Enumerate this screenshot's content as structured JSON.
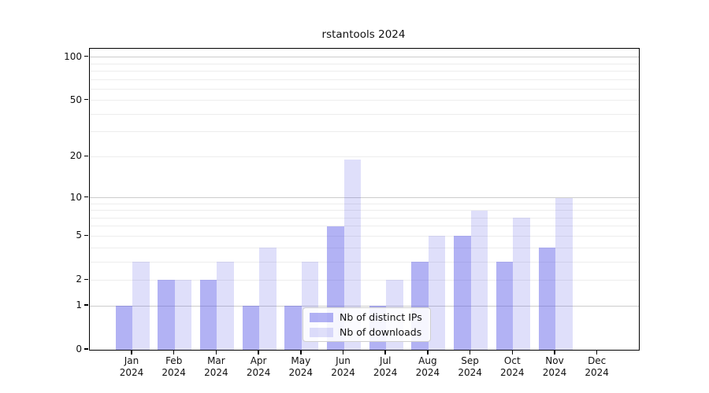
{
  "chart_data": {
    "type": "bar",
    "title": "rstantools 2024",
    "x_tick_months": [
      "Jan",
      "Feb",
      "Mar",
      "Apr",
      "May",
      "Jun",
      "Jul",
      "Aug",
      "Sep",
      "Oct",
      "Nov",
      "Dec"
    ],
    "x_tick_year": "2024",
    "series": [
      {
        "name": "Nb of distinct IPs",
        "color": "rgba(85,85,230,0.45)",
        "color_on_white": "#b2b2f1",
        "values": [
          1,
          2,
          2,
          1,
          1,
          6,
          1,
          3,
          5,
          3,
          4,
          0
        ]
      },
      {
        "name": "Nb of downloads",
        "color": "rgba(85,85,230,0.19)",
        "color_on_white": "#dfdff5",
        "values": [
          3,
          2,
          3,
          4,
          3,
          19,
          2,
          5,
          8,
          7,
          10,
          0
        ]
      }
    ],
    "y_axis": {
      "scale": "log1p",
      "tick_labels": [
        100,
        50,
        20,
        10,
        5,
        2,
        1,
        0
      ],
      "major_gridlines": [
        1,
        10,
        100
      ],
      "minor_gridlines": [
        2,
        3,
        4,
        5,
        6,
        7,
        8,
        9,
        20,
        30,
        40,
        50,
        60,
        70,
        80,
        90
      ],
      "ylim": [
        0,
        115
      ]
    },
    "legend": {
      "position": "bottom-center"
    },
    "grid": "on",
    "axis_color": "#000000",
    "major_grid_color": "#cccccc",
    "minor_grid_color": "#ededed"
  }
}
